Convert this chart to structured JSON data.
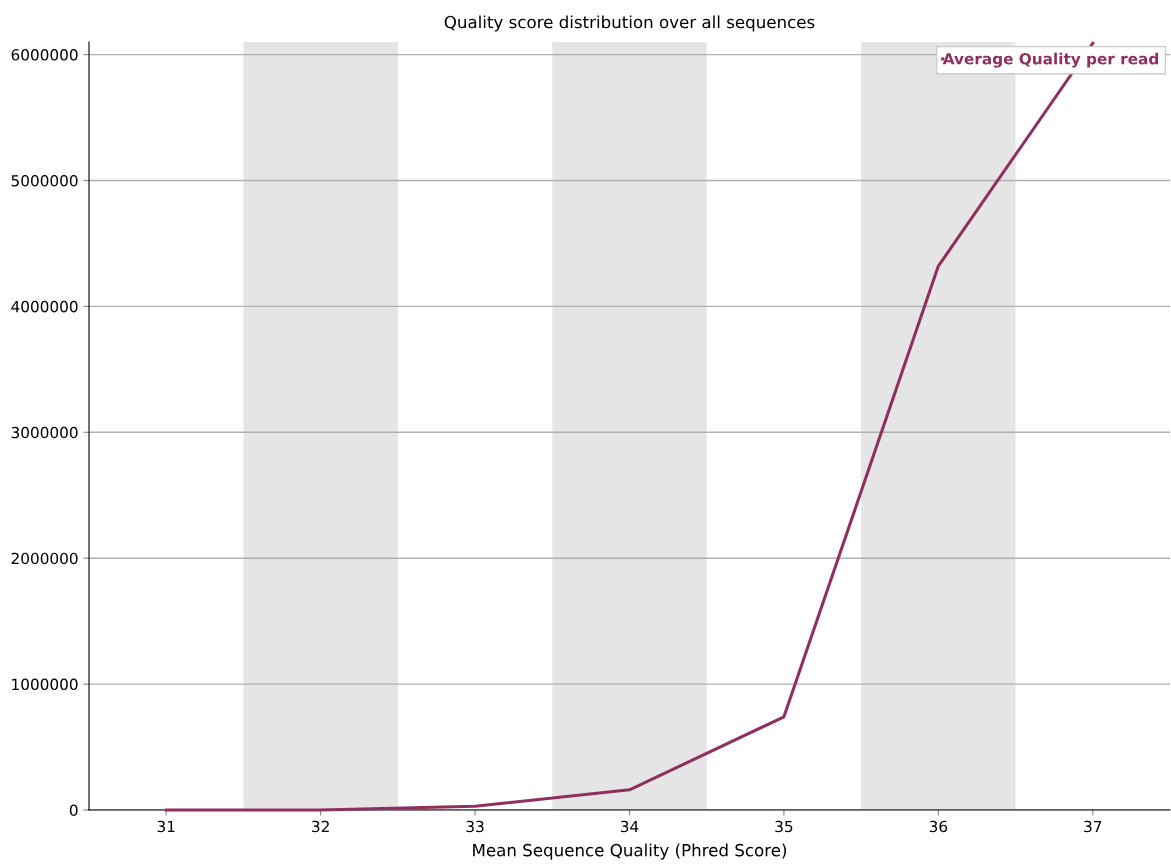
{
  "chart_data": {
    "type": "line",
    "title": "Quality score distribution over all sequences",
    "xlabel": "Mean Sequence Quality (Phred Score)",
    "x": [
      31,
      32,
      33,
      34,
      35,
      36,
      37
    ],
    "series": [
      {
        "name": "Average Quality per read",
        "color": "#8e2f5f",
        "values": [
          0,
          0,
          30000,
          160000,
          740000,
          4320000,
          6090000
        ]
      }
    ],
    "xlim": [
      30.5,
      37.5
    ],
    "xticks": [
      31,
      32,
      33,
      34,
      35,
      36,
      37
    ],
    "ylim": [
      0,
      6100000
    ],
    "yticks": [
      0,
      1000000,
      2000000,
      3000000,
      4000000,
      5000000,
      6000000
    ],
    "bands": [
      {
        "axis": "x",
        "from": 31.5,
        "to": 32.5,
        "color": "#e5e5e5"
      },
      {
        "axis": "x",
        "from": 33.5,
        "to": 34.5,
        "color": "#e5e5e5"
      },
      {
        "axis": "x",
        "from": 35.5,
        "to": 36.5,
        "color": "#e5e5e5"
      }
    ],
    "grid": "y",
    "legend": "top right",
    "marker": "none",
    "line_style": "solid"
  }
}
